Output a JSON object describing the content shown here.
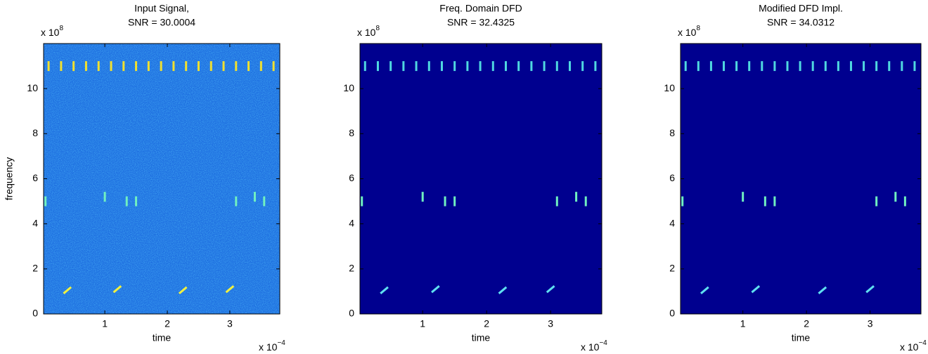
{
  "chart_data": [
    {
      "type": "spectrogram",
      "title": [
        "Input Signal,",
        "SNR = 30.0004"
      ],
      "xlabel": "time",
      "ylabel": "frequency",
      "x_multiplier": {
        "base": "x 10",
        "exp": "−4"
      },
      "y_multiplier": {
        "base": "x 10",
        "exp": "8"
      },
      "xlim": [
        0.02,
        3.8
      ],
      "ylim": [
        0,
        12
      ],
      "xticks": [
        1,
        2,
        3
      ],
      "yticks": [
        0,
        2,
        4,
        6,
        8,
        10
      ],
      "background": "#1e6fe0",
      "noise": true,
      "series": [
        {
          "color": "#f0e030",
          "x": [
            0.1,
            0.3,
            0.5,
            0.7,
            0.9,
            1.1,
            1.3,
            1.5,
            1.7,
            1.9,
            2.1,
            2.3,
            2.5,
            2.7,
            2.9,
            3.1,
            3.3,
            3.5,
            3.7
          ],
          "values": [
            11,
            11,
            11,
            11,
            11,
            11,
            11,
            11,
            11,
            11,
            11,
            11,
            11,
            11,
            11,
            11,
            11,
            11,
            11
          ]
        },
        {
          "color": "#70f0c0",
          "x": [
            0.05,
            1.0,
            1.35,
            1.5,
            3.1,
            3.4,
            3.55
          ],
          "values": [
            5,
            5.2,
            5,
            5,
            5,
            5.2,
            5
          ]
        },
        {
          "color": "#f0f040",
          "x": [
            0.4,
            1.2,
            2.25,
            3.0
          ],
          "values": [
            1.05,
            1.1,
            1.05,
            1.1
          ]
        }
      ]
    },
    {
      "type": "spectrogram",
      "title": [
        "Freq. Domain DFD",
        "SNR = 32.4325"
      ],
      "xlabel": "time",
      "x_multiplier": {
        "base": "x 10",
        "exp": "−4"
      },
      "y_multiplier": {
        "base": "x 10",
        "exp": "8"
      },
      "xlim": [
        0.02,
        3.8
      ],
      "ylim": [
        0,
        12
      ],
      "xticks": [
        1,
        2,
        3
      ],
      "yticks": [
        0,
        2,
        4,
        6,
        8,
        10
      ],
      "background": "#00008f",
      "noise": false,
      "series": [
        {
          "color": "#50d8e0",
          "x": [
            0.1,
            0.3,
            0.5,
            0.7,
            0.9,
            1.1,
            1.3,
            1.5,
            1.7,
            1.9,
            2.1,
            2.3,
            2.5,
            2.7,
            2.9,
            3.1,
            3.3,
            3.5,
            3.7
          ],
          "values": [
            11,
            11,
            11,
            11,
            11,
            11,
            11,
            11,
            11,
            11,
            11,
            11,
            11,
            11,
            11,
            11,
            11,
            11,
            11
          ]
        },
        {
          "color": "#70f0c0",
          "x": [
            0.05,
            1.0,
            1.35,
            1.5,
            3.1,
            3.4,
            3.55
          ],
          "values": [
            5,
            5.2,
            5,
            5,
            5,
            5.2,
            5
          ]
        },
        {
          "color": "#60e0f0",
          "x": [
            0.4,
            1.2,
            2.25,
            3.0
          ],
          "values": [
            1.05,
            1.1,
            1.05,
            1.1
          ]
        }
      ]
    },
    {
      "type": "spectrogram",
      "title": [
        "Modified DFD Impl.",
        "SNR = 34.0312"
      ],
      "xlabel": "time",
      "x_multiplier": {
        "base": "x 10",
        "exp": "−4"
      },
      "y_multiplier": {
        "base": "x 10",
        "exp": "8"
      },
      "xlim": [
        0.02,
        3.8
      ],
      "ylim": [
        0,
        12
      ],
      "xticks": [
        1,
        2,
        3
      ],
      "yticks": [
        0,
        2,
        4,
        6,
        8,
        10
      ],
      "background": "#00008f",
      "noise": false,
      "series": [
        {
          "color": "#50d8e0",
          "x": [
            0.1,
            0.3,
            0.5,
            0.7,
            0.9,
            1.1,
            1.3,
            1.5,
            1.7,
            1.9,
            2.1,
            2.3,
            2.5,
            2.7,
            2.9,
            3.1,
            3.3,
            3.5,
            3.7
          ],
          "values": [
            11,
            11,
            11,
            11,
            11,
            11,
            11,
            11,
            11,
            11,
            11,
            11,
            11,
            11,
            11,
            11,
            11,
            11,
            11
          ]
        },
        {
          "color": "#70f0c0",
          "x": [
            0.05,
            1.0,
            1.35,
            1.5,
            3.1,
            3.4,
            3.55
          ],
          "values": [
            5,
            5.2,
            5,
            5,
            5,
            5.2,
            5
          ]
        },
        {
          "color": "#60e0f0",
          "x": [
            0.4,
            1.2,
            2.25,
            3.0
          ],
          "values": [
            1.05,
            1.1,
            1.05,
            1.1
          ]
        }
      ]
    }
  ]
}
